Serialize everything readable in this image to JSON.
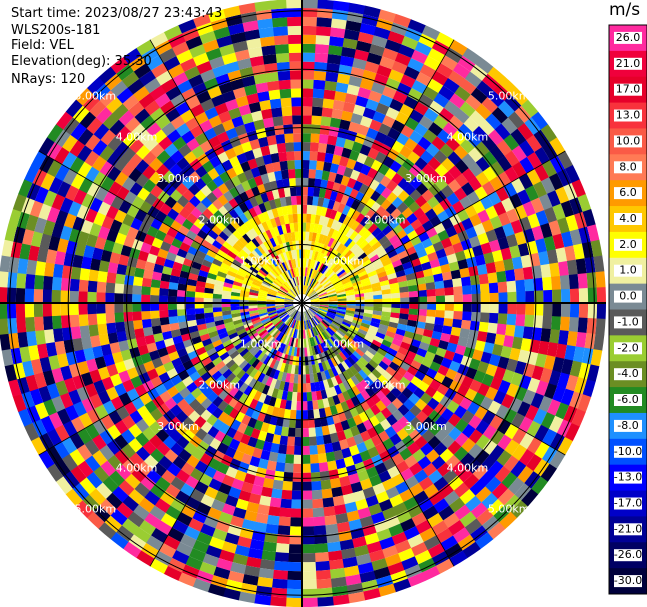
{
  "info": {
    "start_time": "Start time: 2023/08/27 23:43:43",
    "instrument": "WLS200s-181",
    "field": "Field: VEL",
    "elevation": "Elevation(deg): 35.30",
    "nrays": "NRays: 120"
  },
  "chart_data": {
    "type": "heatmap",
    "projection": "polar PPI scan",
    "units": "m/s",
    "n_rays": 120,
    "ring_labels": [
      "1.00km",
      "2.00km",
      "3.00km",
      "4.00km",
      "5.00km"
    ],
    "range_max_km": 5.2,
    "grid": true,
    "colorbar": {
      "title": "m/s",
      "tick_labels": [
        "26.0",
        "21.0",
        "17.0",
        "13.0",
        "10.0",
        "8.0",
        "6.0",
        "4.0",
        "2.0",
        "1.0",
        "0.0",
        "-1.0",
        "-2.0",
        "-4.0",
        "-6.0",
        "-8.0",
        "-10.0",
        "-13.0",
        "-17.0",
        "-21.0",
        "-26.0",
        "-30.0"
      ],
      "colors": [
        "#ff2a9f",
        "#f0003c",
        "#e6002a",
        "#f8323c",
        "#fa5a46",
        "#ff7a55",
        "#ff9a00",
        "#ffc800",
        "#ffff00",
        "#f0f0a0",
        "#7a8a94",
        "#5a5a5a",
        "#9acd32",
        "#6b8e23",
        "#228b22",
        "#1e90ff",
        "#0050ff",
        "#0000ff",
        "#0000c8",
        "#000096",
        "#000064",
        "#00003c"
      ],
      "placement": "right"
    }
  }
}
